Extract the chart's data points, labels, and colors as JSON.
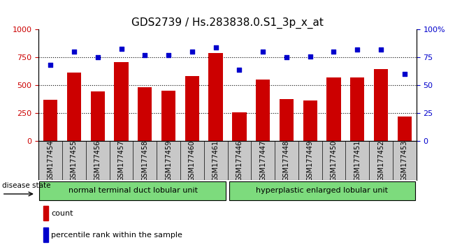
{
  "title": "GDS2739 / Hs.283838.0.S1_3p_x_at",
  "samples": [
    "GSM177454",
    "GSM177455",
    "GSM177456",
    "GSM177457",
    "GSM177458",
    "GSM177459",
    "GSM177460",
    "GSM177461",
    "GSM177446",
    "GSM177447",
    "GSM177448",
    "GSM177449",
    "GSM177450",
    "GSM177451",
    "GSM177452",
    "GSM177453"
  ],
  "counts": [
    370,
    615,
    445,
    710,
    480,
    450,
    580,
    790,
    255,
    550,
    375,
    365,
    570,
    570,
    645,
    220
  ],
  "percentiles": [
    68,
    80,
    75,
    83,
    77,
    77,
    80,
    84,
    64,
    80,
    75,
    76,
    80,
    82,
    82,
    60
  ],
  "group1_label": "normal terminal duct lobular unit",
  "group2_label": "hyperplastic enlarged lobular unit",
  "group1_count": 8,
  "group2_count": 8,
  "bar_color": "#cc0000",
  "dot_color": "#0000cc",
  "ylim_left": [
    0,
    1000
  ],
  "ylim_right": [
    0,
    100
  ],
  "yticks_left": [
    0,
    250,
    500,
    750,
    1000
  ],
  "yticks_right": [
    0,
    25,
    50,
    75,
    100
  ],
  "ytick_labels_right": [
    "0",
    "25",
    "50",
    "75",
    "100%"
  ],
  "grid_values": [
    250,
    500,
    750
  ],
  "group1_color": "#7ddb7d",
  "group2_color": "#7ddb7d",
  "disease_state_label": "disease state",
  "legend_count_label": "count",
  "legend_pct_label": "percentile rank within the sample",
  "title_fontsize": 11,
  "tick_label_fontsize": 7,
  "axis_tick_fontsize": 8,
  "gray_bg": "#c8c8c8"
}
